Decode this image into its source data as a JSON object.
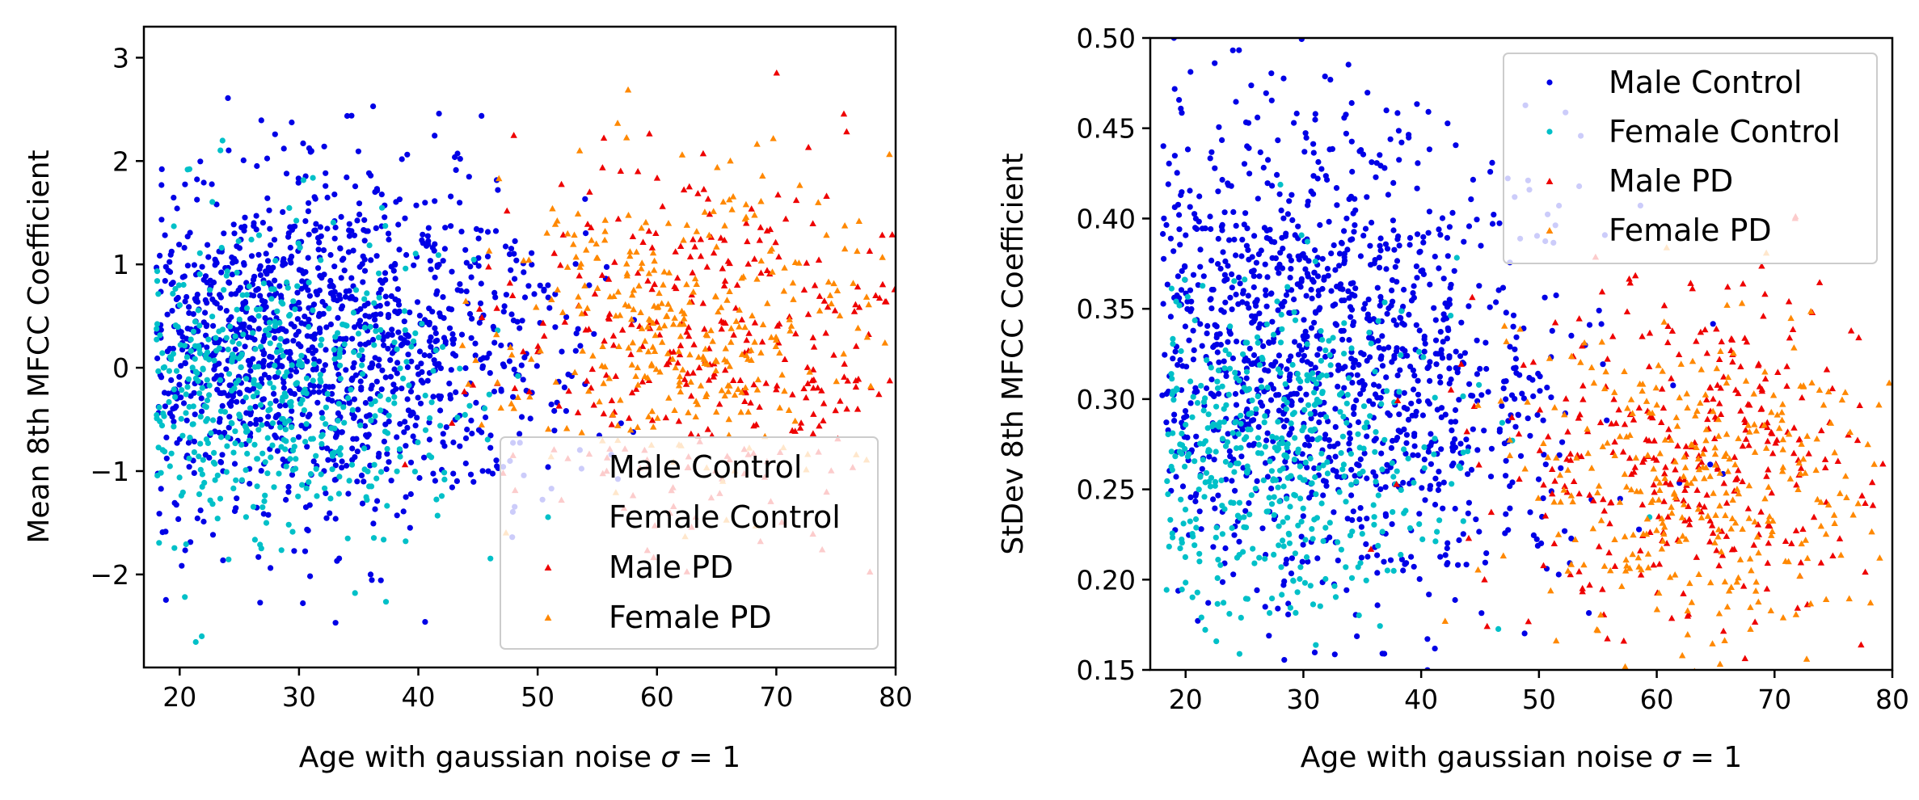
{
  "figure": {
    "background": "#ffffff"
  },
  "chart_data": [
    {
      "type": "scatter",
      "xlabel": "Age with gaussian noise σ = 1",
      "xlabel_prefix": "Age with gaussian noise ",
      "xlabel_sigma": "σ",
      "xlabel_suffix": " = 1",
      "ylabel": "Mean 8th MFCC Coefficient",
      "xlim": [
        17,
        80
      ],
      "ylim": [
        -2.9,
        3.3
      ],
      "xticks": [
        20,
        30,
        40,
        50,
        60,
        70,
        80
      ],
      "yticks": [
        -2,
        -1,
        0,
        1,
        2,
        3
      ],
      "ytick_labels": [
        "−2",
        "−1",
        "0",
        "1",
        "2",
        "3"
      ],
      "grid": false,
      "legend": {
        "placement": "lower-right",
        "entries": [
          "Male Control",
          "Female Control",
          "Male PD",
          "Female PD"
        ]
      },
      "series": [
        {
          "name": "Male Control",
          "marker": "circle",
          "color": "#0000e6",
          "count": 1300,
          "x_range": [
            18,
            79
          ],
          "age_center": 30,
          "age_spread": 11,
          "y_base": 0.25,
          "y_slope": -0.002,
          "y_spread": 0.85
        },
        {
          "name": "Female Control",
          "marker": "circle",
          "color": "#00c0c8",
          "count": 500,
          "x_range": [
            18,
            72
          ],
          "age_center": 26,
          "age_spread": 8,
          "y_base": -0.25,
          "y_slope": 0.0,
          "y_spread": 0.75
        },
        {
          "name": "Male PD",
          "marker": "triangle",
          "color": "#ee0000",
          "count": 330,
          "x_range": [
            18,
            80
          ],
          "age_center": 64,
          "age_spread": 9,
          "y_base": 0.25,
          "y_slope": 0.0,
          "y_spread": 0.85
        },
        {
          "name": "Female PD",
          "marker": "triangle",
          "color": "#ff8800",
          "count": 330,
          "x_range": [
            42,
            80
          ],
          "age_center": 63,
          "age_spread": 8,
          "y_base": 0.35,
          "y_slope": 0.0,
          "y_spread": 0.75
        }
      ]
    },
    {
      "type": "scatter",
      "xlabel": "Age with gaussian noise σ = 1",
      "xlabel_prefix": "Age with gaussian noise ",
      "xlabel_sigma": "σ",
      "xlabel_suffix": " = 1",
      "ylabel": "StDev 8th MFCC Coefficient",
      "xlim": [
        17,
        80
      ],
      "ylim": [
        0.15,
        0.5
      ],
      "xticks": [
        20,
        30,
        40,
        50,
        60,
        70,
        80
      ],
      "yticks": [
        0.15,
        0.2,
        0.25,
        0.3,
        0.35,
        0.4,
        0.45,
        0.5
      ],
      "ytick_labels": [
        "0.15",
        "0.20",
        "0.25",
        "0.30",
        "0.35",
        "0.40",
        "0.45",
        "0.50"
      ],
      "grid": false,
      "legend": {
        "placement": "upper-right",
        "entries": [
          "Male Control",
          "Female Control",
          "Male PD",
          "Female PD"
        ]
      },
      "series": [
        {
          "name": "Male Control",
          "marker": "circle",
          "color": "#0000e6",
          "count": 1300,
          "x_range": [
            18,
            80
          ],
          "age_center": 30,
          "age_spread": 11,
          "y_base": 0.315,
          "y_slope": -0.0012,
          "y_spread": 0.065
        },
        {
          "name": "Female Control",
          "marker": "circle",
          "color": "#00c0c8",
          "count": 480,
          "x_range": [
            18,
            72
          ],
          "age_center": 26,
          "age_spread": 8,
          "y_base": 0.262,
          "y_slope": -0.0003,
          "y_spread": 0.045
        },
        {
          "name": "Male PD",
          "marker": "triangle",
          "color": "#ee0000",
          "count": 330,
          "x_range": [
            18,
            80
          ],
          "age_center": 64,
          "age_spread": 9,
          "y_base": 0.27,
          "y_slope": 0.0,
          "y_spread": 0.05
        },
        {
          "name": "Female PD",
          "marker": "triangle",
          "color": "#ff8800",
          "count": 330,
          "x_range": [
            42,
            80
          ],
          "age_center": 63,
          "age_spread": 8,
          "y_base": 0.255,
          "y_slope": 0.0,
          "y_spread": 0.045
        }
      ]
    }
  ]
}
